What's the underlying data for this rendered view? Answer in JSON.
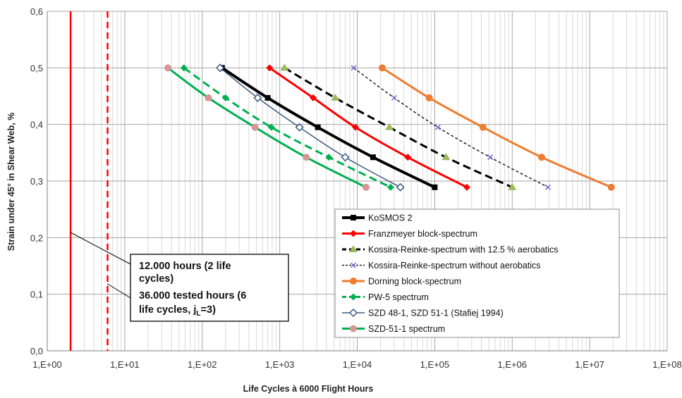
{
  "chart_data": {
    "type": "line",
    "xlabel": "Life Cycles à 6000 Flight Hours",
    "ylabel": "Strain under 45° in Shear Web, %",
    "xscale": "log",
    "xlim": [
      1,
      100000000
    ],
    "ylim": [
      0,
      0.6
    ],
    "x_tick_labels": [
      "1,E+00",
      "1,E+01",
      "1,E+02",
      "1,E+03",
      "1,E+04",
      "1,E+05",
      "1,E+06",
      "1,E+07",
      "1,E+08"
    ],
    "y_tick_labels": [
      "0,0",
      "0,1",
      "0,2",
      "0,3",
      "0,4",
      "0,5",
      "0,6"
    ],
    "grid": true,
    "legend_position": "bottom-right",
    "series": [
      {
        "name": "KoSMOS 2",
        "color": "#000000",
        "dash": "solid",
        "width": 4,
        "marker": "square",
        "points": [
          [
            180,
            0.5
          ],
          [
            700,
            0.447
          ],
          [
            3100,
            0.395
          ],
          [
            16000,
            0.342
          ],
          [
            100000,
            0.289
          ]
        ]
      },
      {
        "name": "Franzmeyer block-spectrum",
        "color": "#ff0000",
        "dash": "solid",
        "width": 3,
        "marker": "diamond",
        "points": [
          [
            740,
            0.5
          ],
          [
            2700,
            0.447
          ],
          [
            9500,
            0.395
          ],
          [
            45000,
            0.342
          ],
          [
            260000,
            0.289
          ]
        ]
      },
      {
        "name": "Kossira-Reinke-spectrum with 12.5 % aerobatics",
        "color": "#000000",
        "dash": "long",
        "width": 3,
        "marker": "triangle",
        "marker_color": "#9bbb59",
        "points": [
          [
            1150,
            0.5
          ],
          [
            5200,
            0.447
          ],
          [
            26000,
            0.395
          ],
          [
            140000,
            0.342
          ],
          [
            1000000,
            0.289
          ]
        ]
      },
      {
        "name": "Kossira-Reinke-spectrum without aerobatics",
        "color": "#222222",
        "dash": "short",
        "width": 1.5,
        "marker": "cross",
        "marker_color": "#6a5acd",
        "points": [
          [
            9000,
            0.5
          ],
          [
            30000,
            0.447
          ],
          [
            110000,
            0.395
          ],
          [
            520000,
            0.342
          ],
          [
            2900000,
            0.289
          ]
        ]
      },
      {
        "name": "Dorning block-spectrum",
        "color": "#ed7d31",
        "dash": "solid",
        "width": 3,
        "marker": "circle",
        "points": [
          [
            21000,
            0.5
          ],
          [
            85000,
            0.447
          ],
          [
            420000,
            0.395
          ],
          [
            2400000,
            0.342
          ],
          [
            19000000,
            0.289
          ]
        ]
      },
      {
        "name": "PW-5 spectrum",
        "color": "#00b050",
        "dash": "long",
        "width": 3,
        "marker": "diamond",
        "points": [
          [
            58,
            0.5
          ],
          [
            200,
            0.447
          ],
          [
            780,
            0.395
          ],
          [
            4300,
            0.342
          ],
          [
            27000,
            0.289
          ]
        ]
      },
      {
        "name": "SZD 48-1, SZD 51-1 (Stafiej 1994)",
        "color": "#3b5b7d",
        "dash": "solid",
        "width": 1.5,
        "marker": "open-diamond",
        "points": [
          [
            170,
            0.5
          ],
          [
            520,
            0.447
          ],
          [
            1800,
            0.395
          ],
          [
            7000,
            0.342
          ],
          [
            36000,
            0.289
          ]
        ]
      },
      {
        "name": "SZD-51-1 spectrum",
        "color": "#00b050",
        "dash": "solid",
        "width": 3,
        "marker": "circle",
        "marker_color": "#d99594",
        "points": [
          [
            36,
            0.5
          ],
          [
            120,
            0.447
          ],
          [
            480,
            0.395
          ],
          [
            2200,
            0.342
          ],
          [
            13000,
            0.289
          ]
        ]
      }
    ],
    "vertical_lines": [
      {
        "x": 2,
        "color": "#ff0000",
        "dash": "solid"
      },
      {
        "x": 6,
        "color": "#ff0000",
        "dash": "dashed"
      }
    ],
    "annotations": [
      {
        "lines": [
          "12.000 hours (2 life",
          "cycles)",
          "36.000 tested hours (6",
          "life cycles, jL=3)"
        ]
      }
    ]
  }
}
